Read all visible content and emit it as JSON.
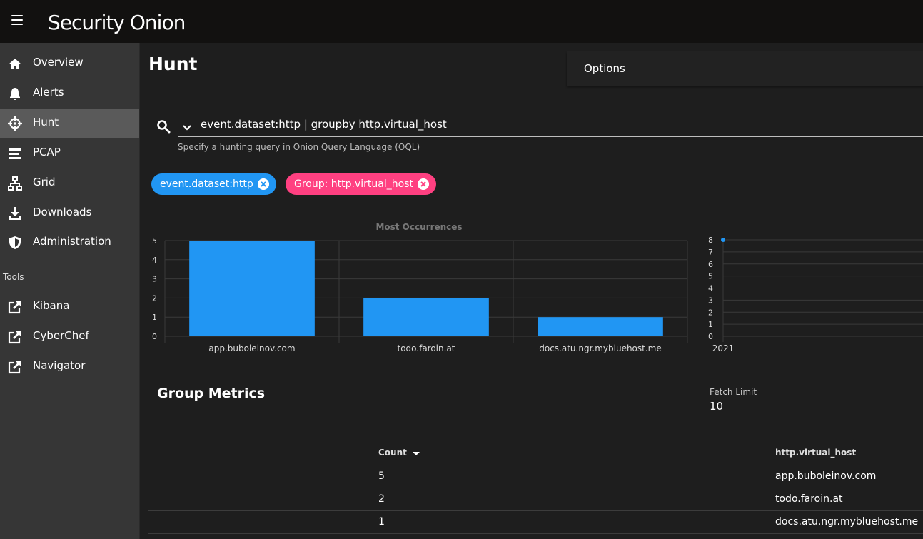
{
  "app": {
    "logo_text": "Security Onion"
  },
  "sidebar": {
    "items": [
      {
        "label": "Overview"
      },
      {
        "label": "Alerts"
      },
      {
        "label": "Hunt"
      },
      {
        "label": "PCAP"
      },
      {
        "label": "Grid"
      },
      {
        "label": "Downloads"
      },
      {
        "label": "Administration"
      }
    ],
    "tools_header": "Tools",
    "tools": [
      {
        "label": "Kibana"
      },
      {
        "label": "CyberChef"
      },
      {
        "label": "Navigator"
      }
    ]
  },
  "main": {
    "title": "Hunt",
    "options_label": "Options",
    "query": "event.dataset:http | groupby http.virtual_host",
    "query_hint": "Specify a hunting query in Onion Query Language (OQL)",
    "chips": [
      {
        "label": "event.dataset:http",
        "color": "#2196f3"
      },
      {
        "label": "Group: http.virtual_host",
        "color": "#ff4081"
      }
    ]
  },
  "chart_data": [
    {
      "type": "bar",
      "title": "Most Occurrences",
      "categories": [
        "app.buboleinov.com",
        "todo.faroin.at",
        "docs.atu.ngr.mybluehost.me"
      ],
      "values": [
        5,
        2,
        1
      ],
      "ylim": [
        0,
        5
      ],
      "yticks": [
        "0",
        "1",
        "2",
        "3",
        "4",
        "5"
      ],
      "color": "#2196f3",
      "grid": true
    },
    {
      "type": "scatter",
      "x_ticks": [
        "2021"
      ],
      "points": [
        {
          "x": "2021",
          "y": 8
        }
      ],
      "ylim": [
        0,
        8
      ],
      "yticks": [
        "0",
        "1",
        "2",
        "3",
        "4",
        "5",
        "6",
        "7",
        "8"
      ],
      "color": "#2196f3",
      "grid": true
    }
  ],
  "metrics": {
    "title": "Group Metrics",
    "fetch_label": "Fetch Limit",
    "fetch_value": "10",
    "columns": [
      "Count",
      "http.virtual_host"
    ],
    "rows": [
      {
        "count": "5",
        "host": "app.buboleinov.com"
      },
      {
        "count": "2",
        "host": "todo.faroin.at"
      },
      {
        "count": "1",
        "host": "docs.atu.ngr.mybluehost.me"
      }
    ]
  }
}
